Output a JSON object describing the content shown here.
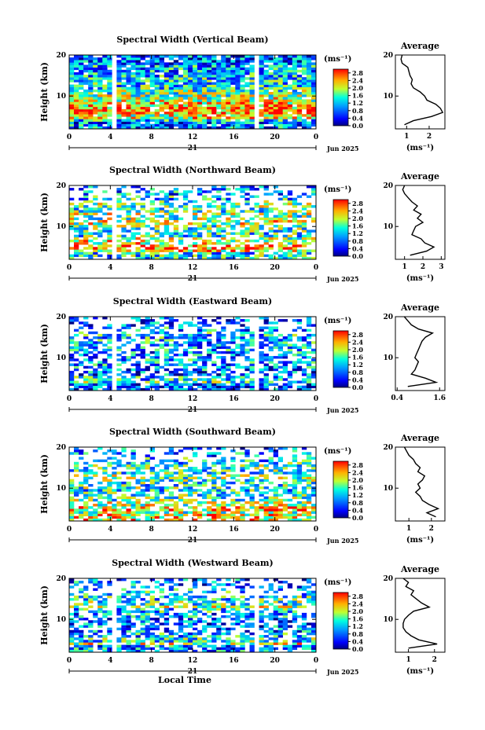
{
  "chart_data": [
    {
      "type": "heatmap",
      "title": "Spectral Width (Vertical Beam)",
      "ylabel": "Height (km)",
      "xticks": [
        "0",
        "4",
        "8",
        "12",
        "16",
        "20",
        "0"
      ],
      "date_day": "21",
      "date_month_year": "Jun 2025",
      "xlim": [
        0,
        24
      ],
      "ylim": [
        2,
        20
      ],
      "yticks": [
        "20",
        "10"
      ],
      "colorbar": {
        "unit": "(ms⁻¹)",
        "ticks": [
          "2.8",
          "2.4",
          "2.0",
          "1.6",
          "1.2",
          "0.8",
          "0.4",
          "0.0"
        ],
        "range": [
          0,
          3.0
        ]
      },
      "data_gaps_hours": [
        4.5,
        18.4
      ],
      "average": {
        "title": "Average",
        "xlabel": "(ms⁻¹)",
        "xticks": [
          "1",
          "2"
        ],
        "xtick_values": [
          1,
          2
        ],
        "xlim": [
          0.5,
          2.7
        ],
        "height": [
          3,
          4,
          5,
          6,
          7,
          8,
          9,
          10,
          11,
          12,
          13,
          14,
          15,
          16,
          17,
          18,
          19,
          20
        ],
        "width": [
          0.9,
          1.3,
          2.1,
          2.6,
          2.5,
          2.3,
          1.9,
          1.8,
          1.6,
          1.3,
          1.2,
          1.25,
          1.15,
          1.1,
          1.05,
          0.8,
          0.75,
          0.8
        ]
      }
    },
    {
      "type": "heatmap",
      "title": "Spectral Width (Northward Beam)",
      "ylabel": "Height (km)",
      "xticks": [
        "0",
        "4",
        "8",
        "12",
        "16",
        "20",
        "0"
      ],
      "date_day": "21",
      "date_month_year": "Jun 2025",
      "xlim": [
        0,
        24
      ],
      "ylim": [
        2,
        20
      ],
      "yticks": [
        "20",
        "10"
      ],
      "colorbar": {
        "unit": "(ms⁻¹)",
        "ticks": [
          "2.8",
          "2.4",
          "2.0",
          "1.6",
          "1.2",
          "0.8",
          "0.4",
          "0.0"
        ],
        "range": [
          0,
          3.0
        ]
      },
      "data_gaps_hours": [
        4.5
      ],
      "average": {
        "title": "Average",
        "xlabel": "(ms⁻¹)",
        "xticks": [
          "1",
          "2",
          "3"
        ],
        "xtick_values": [
          1,
          2,
          3
        ],
        "xlim": [
          0.5,
          3.2
        ],
        "height": [
          3,
          4,
          5,
          6,
          7,
          8,
          9,
          10,
          11,
          12,
          13,
          14,
          15,
          16,
          17,
          18,
          19,
          20
        ],
        "width": [
          1.3,
          2.2,
          2.6,
          2.1,
          1.9,
          1.4,
          1.5,
          1.6,
          2.0,
          1.7,
          1.9,
          1.5,
          1.7,
          1.4,
          1.2,
          1.0,
          0.9,
          1.0
        ]
      }
    },
    {
      "type": "heatmap",
      "title": "Spectral Width (Eastward Beam)",
      "ylabel": "Height (km)",
      "xticks": [
        "0",
        "4",
        "8",
        "12",
        "16",
        "20",
        "0"
      ],
      "date_day": "21",
      "date_month_year": "Jun 2025",
      "xlim": [
        0,
        24
      ],
      "ylim": [
        2,
        20
      ],
      "yticks": [
        "20",
        "10"
      ],
      "colorbar": {
        "unit": "(ms⁻¹)",
        "ticks": [
          "2.8",
          "2.4",
          "2.0",
          "1.6",
          "1.2",
          "0.8",
          "0.4",
          "0.0"
        ],
        "range": [
          0,
          3.0
        ]
      },
      "data_gaps_hours": [
        4.5,
        18.4
      ],
      "average": {
        "title": "Average",
        "xlabel": "",
        "xticks": [
          "0.4",
          "1.6"
        ],
        "xtick_values": [
          0.4,
          1.6
        ],
        "xlim": [
          0.35,
          1.75
        ],
        "height": [
          3,
          4,
          5,
          6,
          7,
          8,
          9,
          10,
          11,
          12,
          13,
          14,
          15,
          16,
          17,
          18,
          19,
          20
        ],
        "width": [
          0.7,
          1.5,
          1.2,
          0.8,
          0.9,
          0.95,
          1.0,
          0.9,
          0.95,
          1.0,
          1.05,
          1.1,
          1.2,
          1.4,
          1.0,
          0.8,
          0.7,
          0.6
        ]
      }
    },
    {
      "type": "heatmap",
      "title": "Spectral Width (Southward Beam)",
      "ylabel": "Height (km)",
      "xticks": [
        "0",
        "4",
        "8",
        "12",
        "16",
        "20",
        "0"
      ],
      "date_day": "21",
      "date_month_year": "Jun 2025",
      "xlim": [
        0,
        24
      ],
      "ylim": [
        2,
        20
      ],
      "yticks": [
        "20",
        "10"
      ],
      "colorbar": {
        "unit": "(ms⁻¹)",
        "ticks": [
          "2.8",
          "2.4",
          "2.0",
          "1.6",
          "1.2",
          "0.8",
          "0.4",
          "0.0"
        ],
        "range": [
          0,
          3.0
        ]
      },
      "data_gaps_hours": [],
      "average": {
        "title": "Average",
        "xlabel": "(ms⁻¹)",
        "xticks": [
          "1",
          "2"
        ],
        "xtick_values": [
          1,
          2
        ],
        "xlim": [
          0.4,
          2.6
        ],
        "height": [
          3,
          4,
          5,
          6,
          7,
          8,
          9,
          10,
          11,
          12,
          13,
          14,
          15,
          16,
          17,
          18,
          19,
          20
        ],
        "width": [
          2.2,
          1.8,
          2.3,
          1.9,
          1.6,
          1.5,
          1.3,
          1.5,
          1.4,
          1.6,
          1.7,
          1.4,
          1.5,
          1.3,
          1.2,
          1.0,
          0.9,
          0.8
        ]
      }
    },
    {
      "type": "heatmap",
      "title": "Spectral Width (Westward Beam)",
      "ylabel": "Height (km)",
      "xticks": [
        "0",
        "4",
        "8",
        "12",
        "16",
        "20",
        "0"
      ],
      "date_day": "21",
      "date_month_year": "Jun 2025",
      "xlabel": "Local Time",
      "xlim": [
        0,
        24
      ],
      "ylim": [
        2,
        20
      ],
      "yticks": [
        "20",
        "10"
      ],
      "colorbar": {
        "unit": "(ms⁻¹)",
        "ticks": [
          "2.8",
          "2.4",
          "2.0",
          "1.6",
          "1.2",
          "0.8",
          "0.4",
          "0.0"
        ],
        "range": [
          0,
          3.0
        ]
      },
      "data_gaps_hours": [
        4.5,
        18.4
      ],
      "average": {
        "title": "Average",
        "xlabel": "(ms⁻¹)",
        "xticks": [
          "1",
          "2"
        ],
        "xtick_values": [
          1,
          2
        ],
        "xlim": [
          0.5,
          2.4
        ],
        "height": [
          3,
          4,
          5,
          6,
          7,
          8,
          9,
          10,
          11,
          12,
          13,
          14,
          15,
          16,
          17,
          18,
          19,
          20
        ],
        "width": [
          1.0,
          2.1,
          1.4,
          1.1,
          0.9,
          0.8,
          0.8,
          0.85,
          1.0,
          1.2,
          1.8,
          1.5,
          1.3,
          1.1,
          1.2,
          0.9,
          1.0,
          0.8
        ]
      }
    }
  ]
}
